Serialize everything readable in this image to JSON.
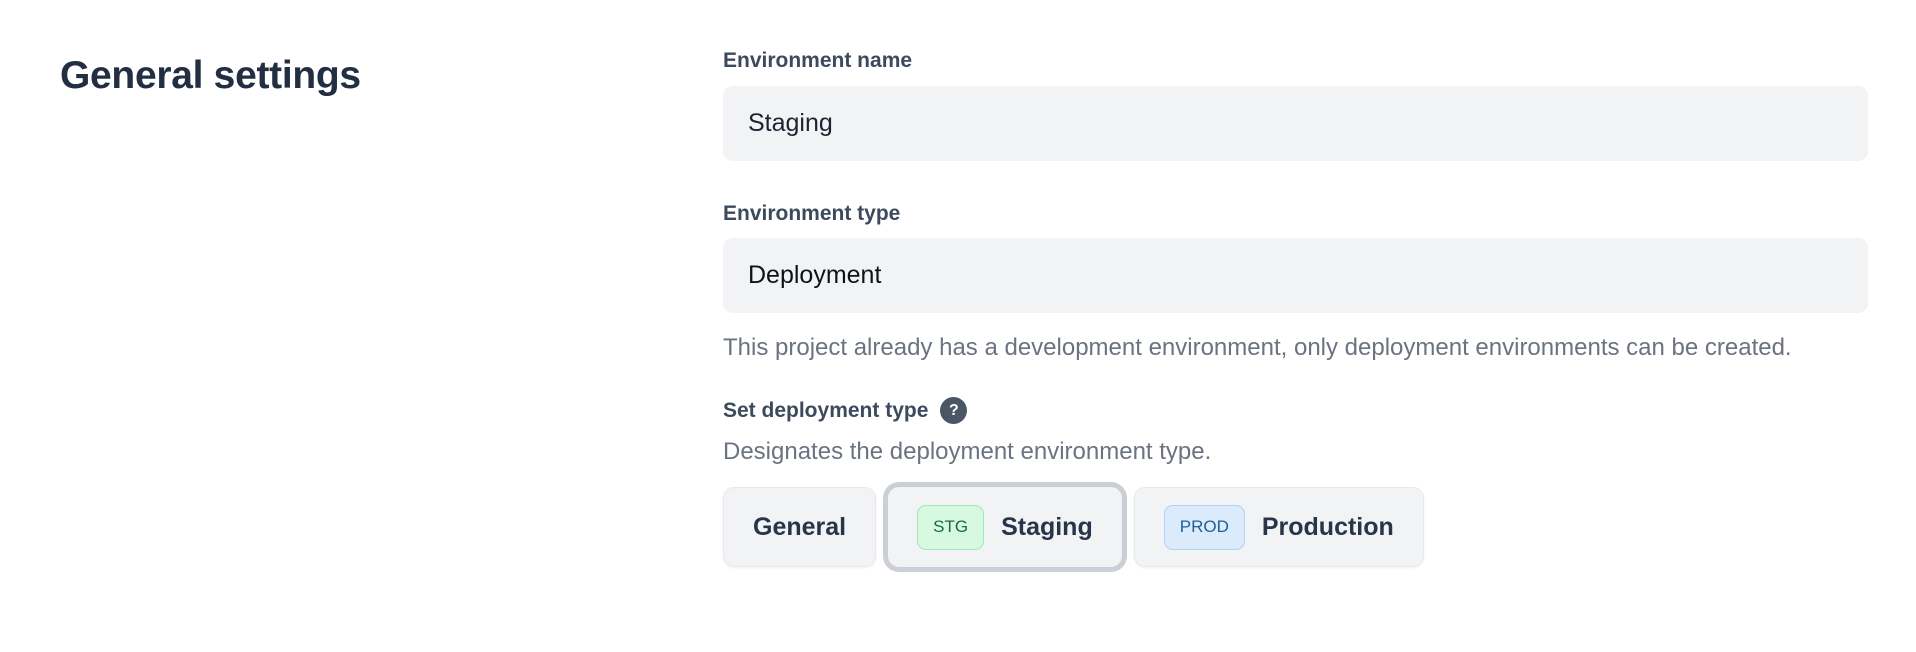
{
  "page": {
    "title": "General settings"
  },
  "form": {
    "environment_name": {
      "label": "Environment name",
      "value": "Staging"
    },
    "environment_type": {
      "label": "Environment type",
      "value": "Deployment",
      "help": "This project already has a development environment, only deployment environments can be created."
    },
    "deployment_type": {
      "label": "Set deployment type",
      "help_icon": "question-mark-icon",
      "help_glyph": "?",
      "description": "Designates the deployment environment type.",
      "options": [
        {
          "label": "General",
          "badge": "",
          "selected": false
        },
        {
          "label": "Staging",
          "badge": "STG",
          "selected": true
        },
        {
          "label": "Production",
          "badge": "PROD",
          "selected": false
        }
      ]
    }
  },
  "colors": {
    "heading_text": "#222e41",
    "label_text": "#3d4a5c",
    "helper_text": "#6b7380",
    "input_background": "#f2f3f5",
    "button_background": "#f2f3f4",
    "selected_ring": "#ccd0d6",
    "stg_badge_background": "#d6f9e0",
    "stg_badge_border": "#a2e8ba",
    "stg_badge_text": "#1c6a41",
    "prod_badge_background": "#dcebfc",
    "prod_badge_border": "#aad4f6",
    "prod_badge_text": "#1e5f97",
    "help_icon_background": "#4a5565"
  }
}
